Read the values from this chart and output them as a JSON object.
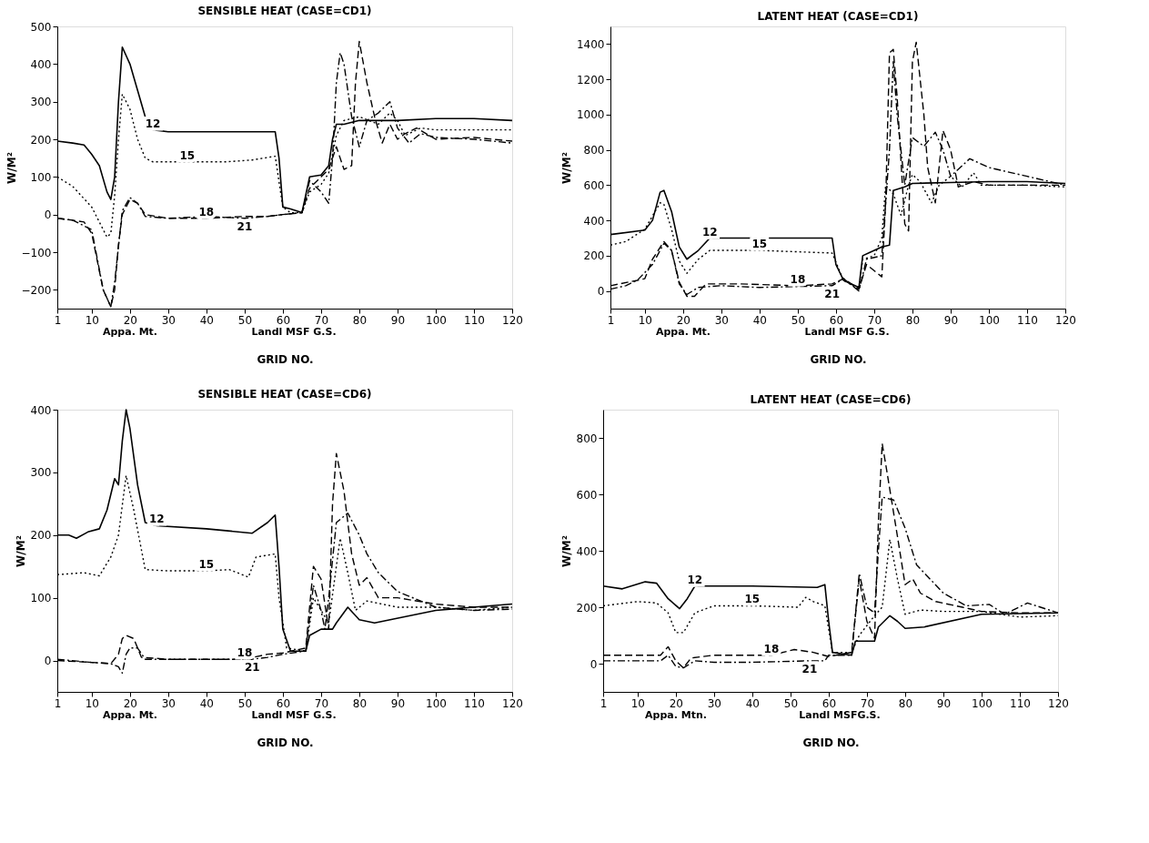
{
  "chart_data": [
    {
      "type": "line",
      "title": "SENSIBLE HEAT (CASE=CD1)",
      "xlabel": "GRID NO.",
      "ylabel": "W/M²",
      "xlim": [
        1,
        120
      ],
      "xticks": [
        1,
        10,
        20,
        30,
        40,
        50,
        60,
        70,
        80,
        90,
        100,
        110,
        120
      ],
      "ylim": [
        -250,
        500
      ],
      "yticks": [
        -200,
        -100,
        0,
        100,
        200,
        300,
        400,
        500
      ],
      "grid": false,
      "legend": false,
      "annotations": [
        "Appa. Mt.",
        "Landl MSF G.S."
      ],
      "series": [
        {
          "name": "12",
          "color": "#000000",
          "line_style": "solid",
          "x": [
            1,
            5,
            8,
            10,
            12,
            14,
            15,
            16,
            17,
            18,
            20,
            22,
            24,
            26,
            30,
            40,
            50,
            58,
            59,
            60,
            62,
            65,
            67,
            70,
            72,
            73,
            74,
            76,
            80,
            90,
            100,
            110,
            120
          ],
          "values": [
            195,
            190,
            185,
            160,
            130,
            60,
            40,
            100,
            300,
            445,
            400,
            330,
            260,
            225,
            220,
            220,
            220,
            220,
            150,
            20,
            15,
            5,
            100,
            105,
            130,
            200,
            240,
            240,
            250,
            250,
            255,
            255,
            250
          ]
        },
        {
          "name": "15",
          "color": "#000000",
          "line_style": "dotted",
          "x": [
            1,
            5,
            10,
            14,
            15,
            16,
            17,
            18,
            20,
            22,
            24,
            26,
            35,
            45,
            52,
            58,
            60,
            62,
            65,
            67,
            70,
            72,
            74,
            76,
            80,
            85,
            88,
            90,
            92,
            96,
            100,
            110,
            120
          ],
          "values": [
            100,
            75,
            20,
            -60,
            -50,
            50,
            200,
            320,
            280,
            200,
            150,
            140,
            140,
            140,
            145,
            155,
            20,
            5,
            5,
            60,
            80,
            110,
            210,
            250,
            260,
            240,
            270,
            250,
            210,
            230,
            225,
            225,
            225
          ]
        },
        {
          "name": "18",
          "color": "#000000",
          "line_style": "dashed",
          "x": [
            1,
            5,
            8,
            10,
            13,
            15,
            16,
            17,
            18,
            20,
            22,
            24,
            30,
            40,
            50,
            56,
            60,
            65,
            67,
            70,
            72,
            74,
            76,
            78,
            79,
            80,
            82,
            84,
            86,
            88,
            90,
            92,
            95,
            100,
            110,
            120
          ],
          "values": [
            -10,
            -15,
            -20,
            -50,
            -200,
            -245,
            -200,
            -80,
            0,
            40,
            30,
            0,
            -10,
            -10,
            -5,
            -5,
            0,
            5,
            70,
            100,
            120,
            180,
            120,
            130,
            350,
            460,
            350,
            260,
            190,
            240,
            200,
            215,
            230,
            200,
            205,
            195
          ]
        },
        {
          "name": "21",
          "color": "#000000",
          "line_style": "dashdot",
          "x": [
            1,
            5,
            10,
            13,
            15,
            16,
            18,
            20,
            22,
            24,
            30,
            40,
            50,
            56,
            60,
            65,
            67,
            70,
            72,
            73,
            74,
            75,
            76,
            78,
            80,
            82,
            85,
            88,
            90,
            93,
            96,
            100,
            110,
            120
          ],
          "values": [
            -10,
            -15,
            -40,
            -200,
            -245,
            -180,
            10,
            45,
            30,
            -5,
            -10,
            -5,
            -10,
            -5,
            0,
            5,
            90,
            60,
            30,
            150,
            350,
            430,
            400,
            260,
            180,
            250,
            270,
            300,
            230,
            190,
            215,
            205,
            200,
            190
          ]
        }
      ]
    },
    {
      "type": "line",
      "title": "LATENT HEAT (CASE=CD1)",
      "xlabel": "GRID NO.",
      "ylabel": "W/M²",
      "xlim": [
        1,
        120
      ],
      "xticks": [
        1,
        10,
        20,
        30,
        40,
        50,
        60,
        70,
        80,
        90,
        100,
        110,
        120
      ],
      "ylim": [
        -100,
        1500
      ],
      "yticks": [
        0,
        200,
        400,
        600,
        800,
        1000,
        1200,
        1400
      ],
      "grid": false,
      "legend": false,
      "annotations": [
        "Appa. Mt.",
        "Landl MSF G.S."
      ],
      "series": [
        {
          "name": "12",
          "color": "#000000",
          "line_style": "solid",
          "x": [
            1,
            10,
            12,
            14,
            15,
            17,
            19,
            21,
            24,
            27,
            40,
            59,
            60,
            62,
            66,
            67,
            69,
            72,
            74,
            75,
            78,
            80,
            90,
            100,
            110,
            120
          ],
          "values": [
            320,
            345,
            400,
            560,
            570,
            450,
            250,
            180,
            230,
            300,
            300,
            300,
            150,
            60,
            20,
            200,
            220,
            250,
            260,
            570,
            590,
            610,
            615,
            620,
            620,
            610
          ]
        },
        {
          "name": "15",
          "color": "#000000",
          "line_style": "dotted",
          "x": [
            1,
            5,
            10,
            14,
            15,
            17,
            19,
            21,
            24,
            27,
            40,
            59,
            62,
            66,
            67,
            70,
            72,
            73,
            75,
            77,
            79,
            80,
            82,
            85,
            87,
            90,
            93,
            96,
            98,
            100,
            110,
            120
          ],
          "values": [
            260,
            280,
            350,
            500,
            490,
            350,
            170,
            100,
            180,
            230,
            230,
            215,
            60,
            10,
            180,
            200,
            300,
            600,
            550,
            430,
            600,
            660,
            620,
            500,
            600,
            650,
            590,
            670,
            600,
            600,
            600,
            590
          ]
        },
        {
          "name": "18",
          "color": "#000000",
          "line_style": "dashed",
          "x": [
            1,
            8,
            10,
            12,
            15,
            17,
            19,
            21,
            23,
            26,
            35,
            50,
            59,
            62,
            66,
            68,
            72,
            73,
            74,
            75,
            76,
            78,
            79,
            80,
            81,
            83,
            84,
            86,
            88,
            90,
            92,
            96,
            100,
            110,
            120
          ],
          "values": [
            30,
            60,
            70,
            180,
            280,
            230,
            50,
            -30,
            -30,
            40,
            40,
            30,
            40,
            70,
            10,
            150,
            80,
            500,
            1350,
            1370,
            1100,
            380,
            340,
            1300,
            1410,
            1000,
            700,
            500,
            910,
            800,
            590,
            620,
            600,
            600,
            600
          ]
        },
        {
          "name": "21",
          "color": "#000000",
          "line_style": "dashdot",
          "x": [
            1,
            5,
            8,
            12,
            15,
            17,
            19,
            21,
            24,
            30,
            40,
            59,
            62,
            66,
            68,
            72,
            74,
            75,
            76,
            78,
            80,
            83,
            86,
            88,
            90,
            95,
            100,
            110,
            120
          ],
          "values": [
            10,
            30,
            60,
            150,
            270,
            230,
            40,
            -20,
            20,
            30,
            20,
            30,
            70,
            0,
            180,
            200,
            800,
            1300,
            1000,
            600,
            870,
            820,
            900,
            800,
            650,
            750,
            700,
            650,
            600
          ]
        }
      ]
    },
    {
      "type": "line",
      "title": "SENSIBLE HEAT (CASE=CD6)",
      "xlabel": "GRID NO.",
      "ylabel": "W/M²",
      "xlim": [
        1,
        120
      ],
      "xticks": [
        1,
        10,
        20,
        30,
        40,
        50,
        60,
        70,
        80,
        90,
        100,
        110,
        120
      ],
      "ylim": [
        -50,
        400
      ],
      "yticks": [
        0,
        100,
        200,
        300,
        400
      ],
      "grid": false,
      "legend": false,
      "annotations": [
        "Appa. Mt.",
        "Landl MSF G.S."
      ],
      "series": [
        {
          "name": "12",
          "color": "#000000",
          "line_style": "solid",
          "x": [
            1,
            4,
            6,
            9,
            12,
            14,
            16,
            17,
            18,
            19,
            20,
            22,
            24,
            27,
            40,
            52,
            56,
            58,
            59,
            60,
            62,
            66,
            67,
            70,
            73,
            74,
            77,
            80,
            84,
            100,
            120
          ],
          "values": [
            200,
            200,
            195,
            205,
            210,
            240,
            290,
            280,
            350,
            400,
            370,
            280,
            220,
            215,
            210,
            203,
            220,
            232,
            150,
            50,
            15,
            15,
            40,
            50,
            50,
            60,
            85,
            65,
            60,
            80,
            90
          ]
        },
        {
          "name": "15",
          "color": "#000000",
          "line_style": "dotted",
          "x": [
            1,
            8,
            12,
            15,
            17,
            19,
            21,
            24,
            30,
            40,
            46,
            51,
            53,
            58,
            59,
            61,
            66,
            68,
            70,
            72,
            74,
            75,
            77,
            79,
            82,
            90,
            100,
            110,
            120
          ],
          "values": [
            137,
            140,
            135,
            165,
            200,
            295,
            240,
            145,
            143,
            143,
            145,
            133,
            165,
            170,
            100,
            20,
            15,
            100,
            80,
            60,
            150,
            195,
            140,
            80,
            95,
            85,
            85,
            80,
            85
          ]
        },
        {
          "name": "18",
          "color": "#000000",
          "line_style": "dashed",
          "x": [
            1,
            10,
            15,
            17,
            18,
            19,
            21,
            23,
            30,
            50,
            56,
            60,
            66,
            68,
            70,
            72,
            73,
            74,
            76,
            78,
            80,
            82,
            85,
            90,
            100,
            110,
            120
          ],
          "values": [
            0,
            -3,
            -5,
            10,
            35,
            40,
            35,
            5,
            2,
            2,
            10,
            12,
            20,
            150,
            130,
            50,
            250,
            330,
            270,
            170,
            120,
            132,
            100,
            100,
            90,
            85,
            85
          ]
        },
        {
          "name": "21",
          "color": "#000000",
          "line_style": "dashdot",
          "x": [
            1,
            10,
            15,
            17,
            18,
            19,
            20,
            22,
            24,
            40,
            52,
            56,
            60,
            66,
            68,
            70,
            71,
            72,
            74,
            77,
            80,
            82,
            85,
            90,
            100,
            110,
            120
          ],
          "values": [
            2,
            -3,
            -5,
            -10,
            -20,
            10,
            20,
            20,
            2,
            2,
            2,
            5,
            10,
            15,
            120,
            80,
            50,
            100,
            220,
            235,
            200,
            170,
            140,
            110,
            85,
            80,
            82
          ]
        }
      ]
    },
    {
      "type": "line",
      "title": "LATENT HEAT (CASE=CD6)",
      "xlabel": "GRID NO.",
      "ylabel": "W/M²",
      "xlim": [
        1,
        120
      ],
      "xticks": [
        1,
        10,
        20,
        30,
        40,
        50,
        60,
        70,
        80,
        90,
        100,
        110,
        120
      ],
      "ylim": [
        -100,
        900
      ],
      "yticks": [
        0,
        200,
        400,
        600,
        800
      ],
      "grid": false,
      "legend": false,
      "annotations": [
        "Appa. Mtn.",
        "Landl MSFG.S."
      ],
      "series": [
        {
          "name": "12",
          "color": "#000000",
          "line_style": "solid",
          "x": [
            1,
            6,
            12,
            15,
            18,
            21,
            23,
            25,
            40,
            57,
            59,
            60,
            61,
            66,
            67,
            72,
            73,
            76,
            78,
            80,
            85,
            100,
            120
          ],
          "values": [
            275,
            265,
            290,
            285,
            230,
            195,
            230,
            275,
            275,
            270,
            280,
            150,
            40,
            30,
            80,
            80,
            130,
            170,
            150,
            125,
            130,
            175,
            180
          ]
        },
        {
          "name": "15",
          "color": "#000000",
          "line_style": "dotted",
          "x": [
            1,
            10,
            15,
            18,
            20,
            22,
            25,
            30,
            40,
            52,
            54,
            56,
            59,
            61,
            66,
            68,
            72,
            74,
            76,
            78,
            80,
            84,
            90,
            100,
            110,
            120
          ],
          "values": [
            205,
            220,
            215,
            180,
            110,
            110,
            180,
            205,
            205,
            200,
            235,
            220,
            205,
            40,
            40,
            100,
            170,
            200,
            440,
            300,
            175,
            190,
            185,
            185,
            165,
            170
          ]
        },
        {
          "name": "18",
          "color": "#000000",
          "line_style": "dashed",
          "x": [
            1,
            10,
            16,
            18,
            20,
            22,
            24,
            30,
            45,
            51,
            56,
            60,
            66,
            68,
            70,
            72,
            73,
            74,
            75,
            78,
            80,
            82,
            84,
            88,
            95,
            100,
            110,
            120
          ],
          "values": [
            30,
            30,
            30,
            60,
            10,
            -15,
            20,
            30,
            30,
            50,
            40,
            25,
            40,
            300,
            150,
            90,
            500,
            780,
            700,
            450,
            280,
            300,
            250,
            220,
            200,
            185,
            180,
            180
          ]
        },
        {
          "name": "21",
          "color": "#000000",
          "line_style": "dashdot",
          "x": [
            1,
            16,
            18,
            20,
            22,
            25,
            30,
            40,
            55,
            59,
            60,
            66,
            68,
            70,
            72,
            73,
            74,
            77,
            80,
            83,
            90,
            96,
            102,
            106,
            112,
            120
          ],
          "values": [
            10,
            10,
            30,
            -10,
            -15,
            10,
            5,
            5,
            10,
            10,
            30,
            30,
            320,
            200,
            180,
            400,
            590,
            580,
            480,
            350,
            250,
            205,
            210,
            175,
            215,
            180
          ]
        }
      ]
    }
  ]
}
